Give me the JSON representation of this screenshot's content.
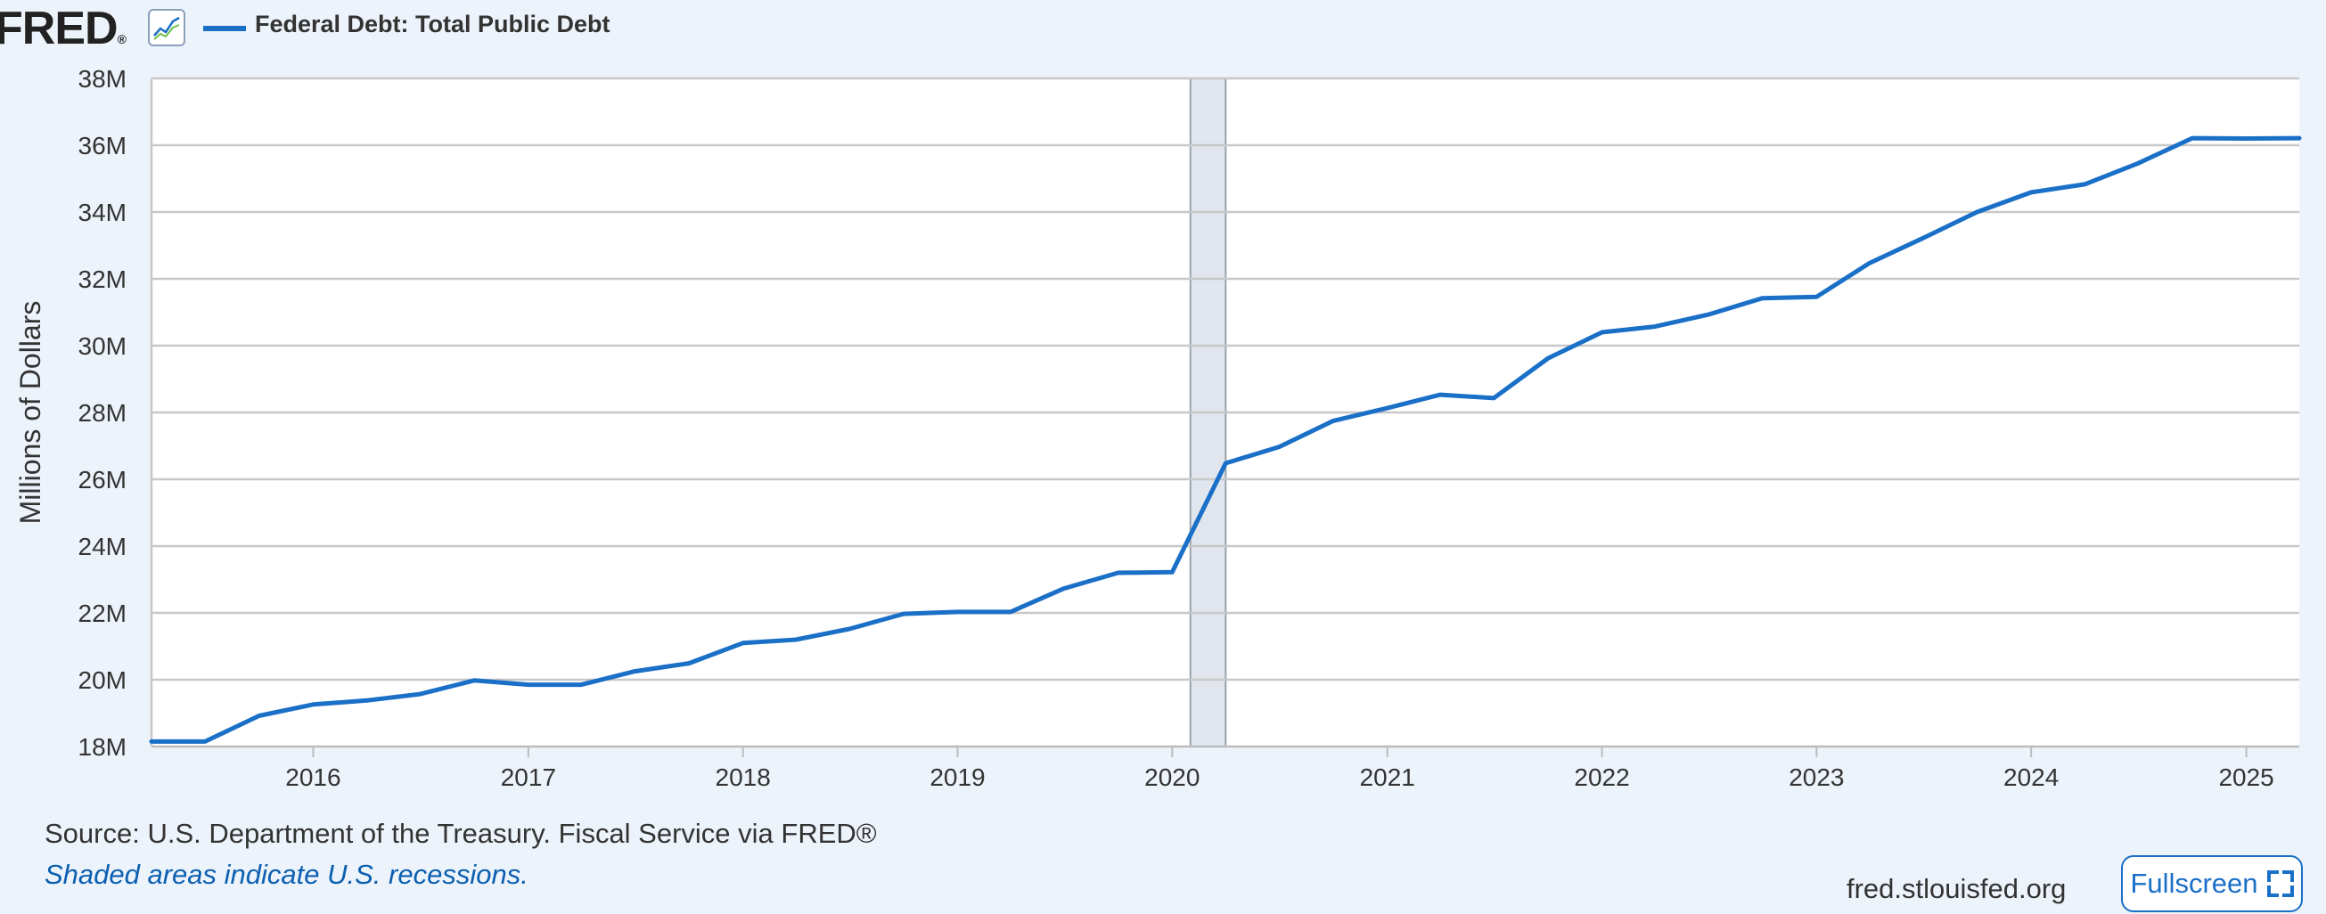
{
  "header": {
    "logo_text": "FRED",
    "logo_mark": "®",
    "graph_icon": "line-graph-icon",
    "legend_label": "Federal Debt: Total Public Debt"
  },
  "footer": {
    "source": "Source: U.S. Department of the Treasury. Fiscal Service via FRED®",
    "recession_note": "Shaded areas indicate U.S. recessions.",
    "site": "fred.stlouisfed.org",
    "fullscreen_label": "Fullscreen",
    "fullscreen_icon": "expand-icon"
  },
  "colors": {
    "series": "#1a6fc7",
    "recession": "#e1e6ee",
    "background": "#edf3fb"
  },
  "chart_data": {
    "type": "line",
    "ylabel": "Millions of Dollars",
    "ylim": [
      18000000,
      38000000
    ],
    "xlim": [
      "2015-04-01",
      "2025-04-01"
    ],
    "y_ticks": [
      {
        "value": 18000000,
        "label": "18M"
      },
      {
        "value": 20000000,
        "label": "20M"
      },
      {
        "value": 22000000,
        "label": "22M"
      },
      {
        "value": 24000000,
        "label": "24M"
      },
      {
        "value": 26000000,
        "label": "26M"
      },
      {
        "value": 28000000,
        "label": "28M"
      },
      {
        "value": 30000000,
        "label": "30M"
      },
      {
        "value": 32000000,
        "label": "32M"
      },
      {
        "value": 34000000,
        "label": "34M"
      },
      {
        "value": 36000000,
        "label": "36M"
      },
      {
        "value": 38000000,
        "label": "38M"
      }
    ],
    "x_ticks": [
      "2016",
      "2017",
      "2018",
      "2019",
      "2020",
      "2021",
      "2022",
      "2023",
      "2024",
      "2025"
    ],
    "recessions": [
      {
        "start": "2020-02-01",
        "end": "2020-04-01"
      }
    ],
    "grid": true,
    "series": [
      {
        "name": "Federal Debt: Total Public Debt",
        "x": [
          "2015-04-01",
          "2015-07-01",
          "2015-10-01",
          "2016-01-01",
          "2016-04-01",
          "2016-07-01",
          "2016-10-01",
          "2017-01-01",
          "2017-04-01",
          "2017-07-01",
          "2017-10-01",
          "2018-01-01",
          "2018-04-01",
          "2018-07-01",
          "2018-10-01",
          "2019-01-01",
          "2019-04-01",
          "2019-07-01",
          "2019-10-01",
          "2020-01-01",
          "2020-04-01",
          "2020-07-01",
          "2020-10-01",
          "2021-01-01",
          "2021-04-01",
          "2021-07-01",
          "2021-10-01",
          "2022-01-01",
          "2022-04-01",
          "2022-07-01",
          "2022-10-01",
          "2023-01-01",
          "2023-04-01",
          "2023-07-01",
          "2023-10-01",
          "2024-01-01",
          "2024-04-01",
          "2024-07-01",
          "2024-10-01",
          "2025-01-01",
          "2025-04-01"
        ],
        "values": [
          18150000,
          18150000,
          18920000,
          19260000,
          19380000,
          19570000,
          19980000,
          19850000,
          19850000,
          20250000,
          20490000,
          21100000,
          21200000,
          21520000,
          21970000,
          22030000,
          22030000,
          22730000,
          23200000,
          23220000,
          26480000,
          26970000,
          27750000,
          28130000,
          28530000,
          28430000,
          29620000,
          30400000,
          30570000,
          30930000,
          31420000,
          31460000,
          32470000,
          33220000,
          34000000,
          34590000,
          34830000,
          35460000,
          36210000,
          36200000,
          36210000
        ]
      }
    ]
  }
}
